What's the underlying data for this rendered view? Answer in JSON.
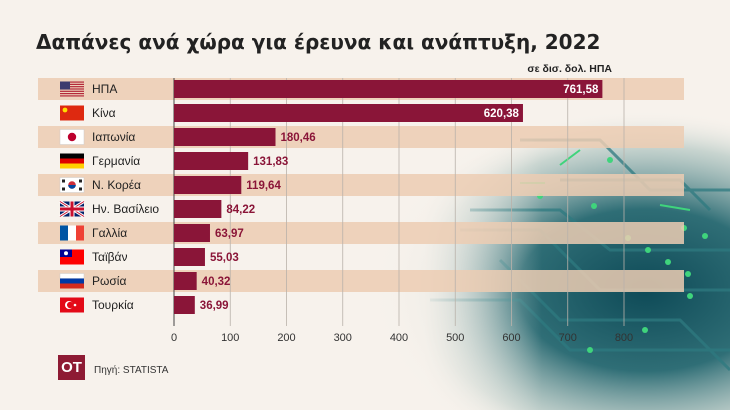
{
  "title": "Δαπάνες ανά χώρα για έρευνα και ανάπτυξη, 2022",
  "unit_label": "σε δισ. δολ. ΗΠΑ",
  "source": "Πηγή: STATISTA",
  "logo_text": "OT",
  "colors": {
    "bar": "#8a1538",
    "stripe": "#eccdb3",
    "background": "#f7f2ec",
    "logo": "#8e1b34"
  },
  "flags": [
    "us-flag-icon",
    "cn-flag-icon",
    "jp-flag-icon",
    "de-flag-icon",
    "kr-flag-icon",
    "gb-flag-icon",
    "fr-flag-icon",
    "tw-flag-icon",
    "ru-flag-icon",
    "tr-flag-icon"
  ],
  "chart_data": {
    "type": "bar",
    "orientation": "horizontal",
    "categories": [
      "ΗΠΑ",
      "Κίνα",
      "Ιαπωνία",
      "Γερμανία",
      "Ν. Κορέα",
      "Ην. Βασίλειο",
      "Γαλλία",
      "Ταϊβάν",
      "Ρωσία",
      "Τουρκία"
    ],
    "values": [
      761.58,
      620.38,
      180.46,
      131.83,
      119.64,
      84.22,
      63.97,
      55.03,
      40.32,
      36.99
    ],
    "value_labels": [
      "761,58",
      "620,38",
      "180,46",
      "131,83",
      "119,64",
      "84,22",
      "63,97",
      "55,03",
      "40,32",
      "36,99"
    ],
    "xlim": [
      0,
      800
    ],
    "xticks": [
      0,
      100,
      200,
      300,
      400,
      500,
      600,
      700,
      800
    ],
    "grid": true
  }
}
